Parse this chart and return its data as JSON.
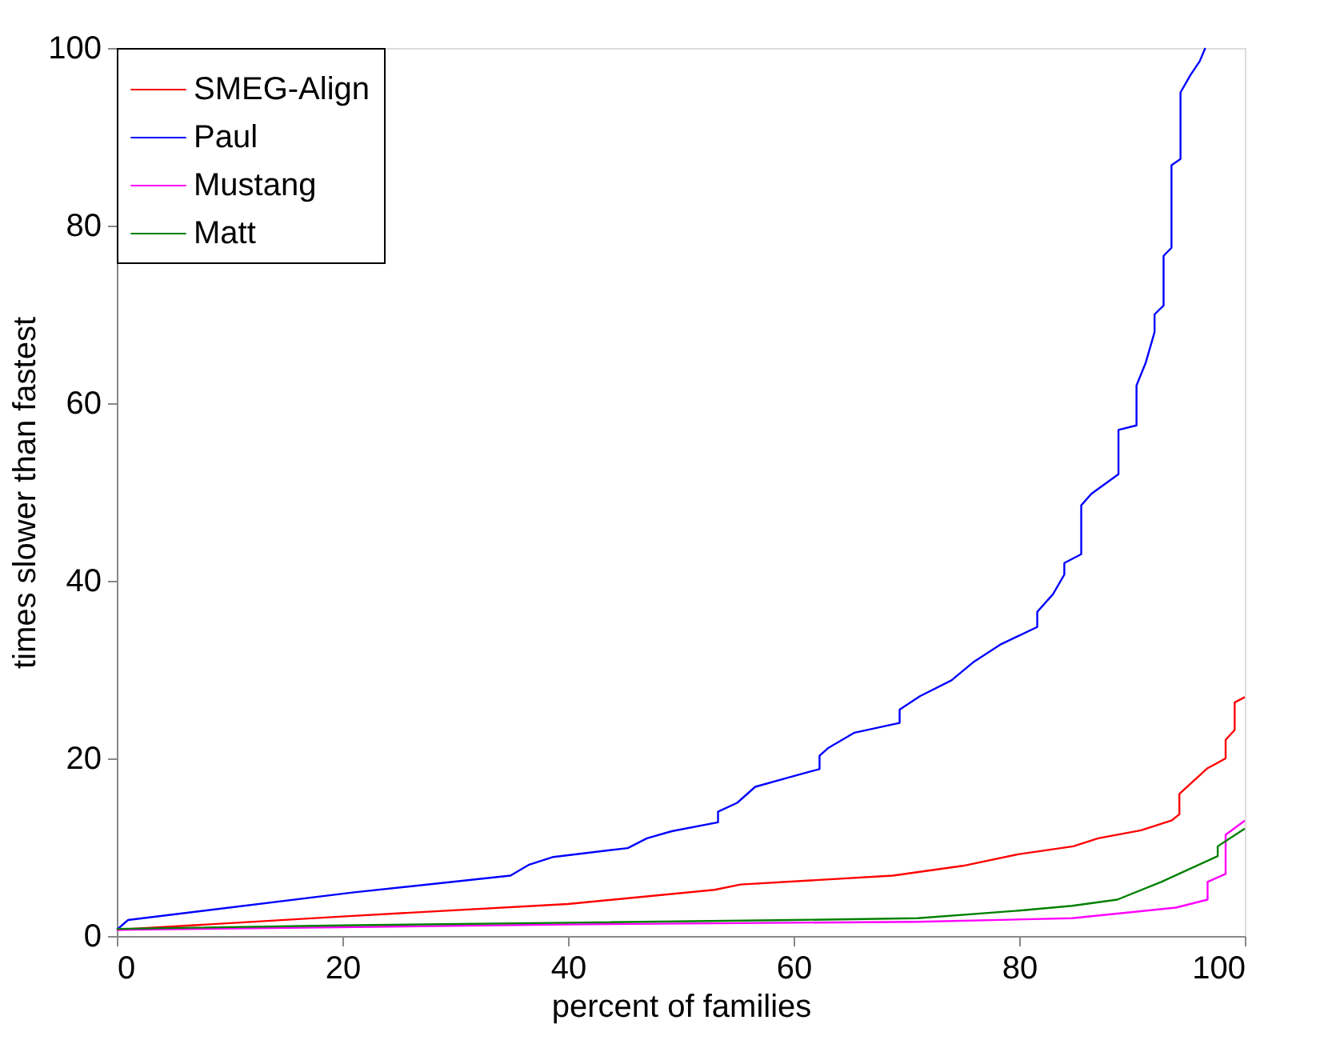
{
  "chart_data": {
    "type": "line",
    "xlabel": "percent of families",
    "ylabel": "times slower than fastest",
    "xlim": [
      0,
      100
    ],
    "ylim": [
      0,
      100
    ],
    "xticks": [
      0,
      20,
      40,
      60,
      80,
      100
    ],
    "yticks": [
      0,
      20,
      40,
      60,
      80,
      100
    ],
    "grid": false,
    "legend": "top left",
    "marker": "none",
    "line_style": "solid",
    "series": [
      {
        "name": "SMEG-Align",
        "color": "#ff0000",
        "x": [
          0,
          20,
          40,
          53,
          55.3,
          68.8,
          75,
          79.9,
          84.8,
          87,
          90.8,
          93.5,
          94.2,
          94.2,
          96.7,
          98.3,
          98.3,
          99.1,
          99.1,
          100
        ],
        "values": [
          0.7,
          2.2,
          3.6,
          5.2,
          5.8,
          6.8,
          7.9,
          9.2,
          10.1,
          11,
          11.9,
          13,
          13.7,
          16,
          18.9,
          20,
          22.1,
          23.2,
          26.3,
          26.9
        ]
      },
      {
        "name": "Paul",
        "color": "#0000ff",
        "x": [
          0,
          1,
          20.9,
          34.9,
          36.5,
          38.7,
          45.3,
          47,
          49.2,
          53.3,
          53.3,
          55,
          56.6,
          60,
          62.3,
          62.3,
          63.1,
          65.4,
          69.4,
          69.4,
          71.2,
          74,
          75.9,
          78.3,
          81.6,
          81.6,
          83,
          84,
          84,
          85.5,
          85.5,
          86.4,
          88.8,
          88.8,
          90.4,
          90.4,
          91.2,
          92,
          92,
          92.8,
          92.8,
          93.5,
          93.5,
          94.3,
          94.3,
          95.2,
          96,
          96.5
        ],
        "values": [
          0.7,
          1.8,
          4.9,
          6.8,
          8,
          8.9,
          9.9,
          11,
          11.8,
          12.8,
          14,
          15,
          16.8,
          18,
          18.8,
          20.3,
          21.2,
          22.9,
          24,
          25.5,
          27,
          28.8,
          30.8,
          32.8,
          34.8,
          36.5,
          38.5,
          40.7,
          42,
          43,
          48.5,
          49.8,
          52,
          57,
          57.5,
          62,
          64.5,
          68,
          70,
          71,
          76.6,
          77.5,
          86.8,
          87.5,
          95,
          97,
          98.5,
          100
        ]
      },
      {
        "name": "Mustang",
        "color": "#ff00ff",
        "x": [
          0,
          40,
          60,
          71,
          84.7,
          93.9,
          96.7,
          96.7,
          98.3,
          98.3,
          100
        ],
        "values": [
          0.7,
          1.3,
          1.5,
          1.6,
          2,
          3.2,
          4.1,
          6.1,
          7,
          11.4,
          13
        ]
      },
      {
        "name": "Matt",
        "color": "#008000",
        "x": [
          0,
          20,
          40,
          60,
          71,
          80.4,
          84.7,
          88.7,
          92.6,
          97.6,
          97.6,
          100
        ],
        "values": [
          0.8,
          1.2,
          1.5,
          1.8,
          2,
          2.9,
          3.4,
          4.1,
          6.1,
          9,
          10.1,
          12.1
        ]
      }
    ]
  }
}
